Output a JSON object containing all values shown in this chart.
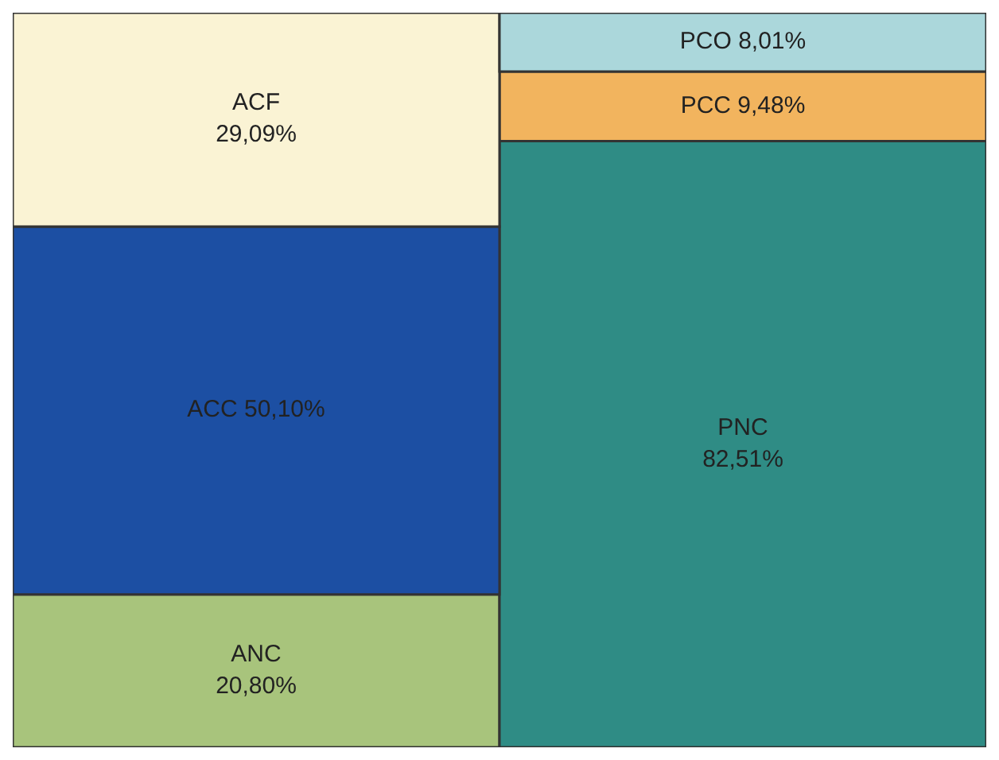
{
  "chart_data": {
    "type": "bar",
    "stacked": true,
    "categories": [
      null,
      null
    ],
    "series": [
      {
        "colors": [
          "#a8c47c",
          "#2f8c85"
        ],
        "values": [
          20.8,
          82.51
        ],
        "value_labels": [
          "ANC\n20,80%",
          "PNC\n82,51%"
        ]
      },
      {
        "colors": [
          "#1c4fa3",
          "#f2b45e"
        ],
        "values": [
          50.1,
          9.48
        ],
        "value_labels": [
          "ACC 50,10%",
          "PCC  9,48%"
        ]
      },
      {
        "colors": [
          "#faf3d4",
          "#abd7db"
        ],
        "values": [
          29.09,
          8.01
        ],
        "value_labels": [
          "ACF\n29,09%",
          "PCO  8,01%"
        ]
      }
    ]
  }
}
